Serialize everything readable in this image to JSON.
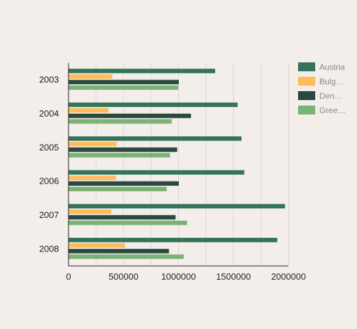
{
  "chart_data": {
    "type": "bar",
    "orientation": "horizontal",
    "categories": [
      "2003",
      "2004",
      "2005",
      "2006",
      "2007",
      "2008"
    ],
    "series": [
      {
        "name": "Austria",
        "legend_label": "Austria",
        "color": "#35745a",
        "values": [
          1330000,
          1535000,
          1570000,
          1595000,
          1965000,
          1895000
        ]
      },
      {
        "name": "Bulgaria",
        "legend_label": "Bulg…",
        "color": "#ffbd59",
        "values": [
          395000,
          360000,
          435000,
          430000,
          385000,
          510000
        ]
      },
      {
        "name": "Denmark",
        "legend_label": "Den…",
        "color": "#2a4a3f",
        "values": [
          1000000,
          1110000,
          985000,
          1000000,
          970000,
          910000
        ]
      },
      {
        "name": "Greece",
        "legend_label": "Gree…",
        "color": "#7ab374",
        "values": [
          995000,
          935000,
          920000,
          890000,
          1075000,
          1045000
        ]
      }
    ],
    "x_ticks": [
      "0",
      "500000",
      "1000000",
      "1500000",
      "2000000"
    ],
    "xlim": [
      0,
      2000000
    ],
    "grid": "vertical",
    "legend_position": "right"
  }
}
